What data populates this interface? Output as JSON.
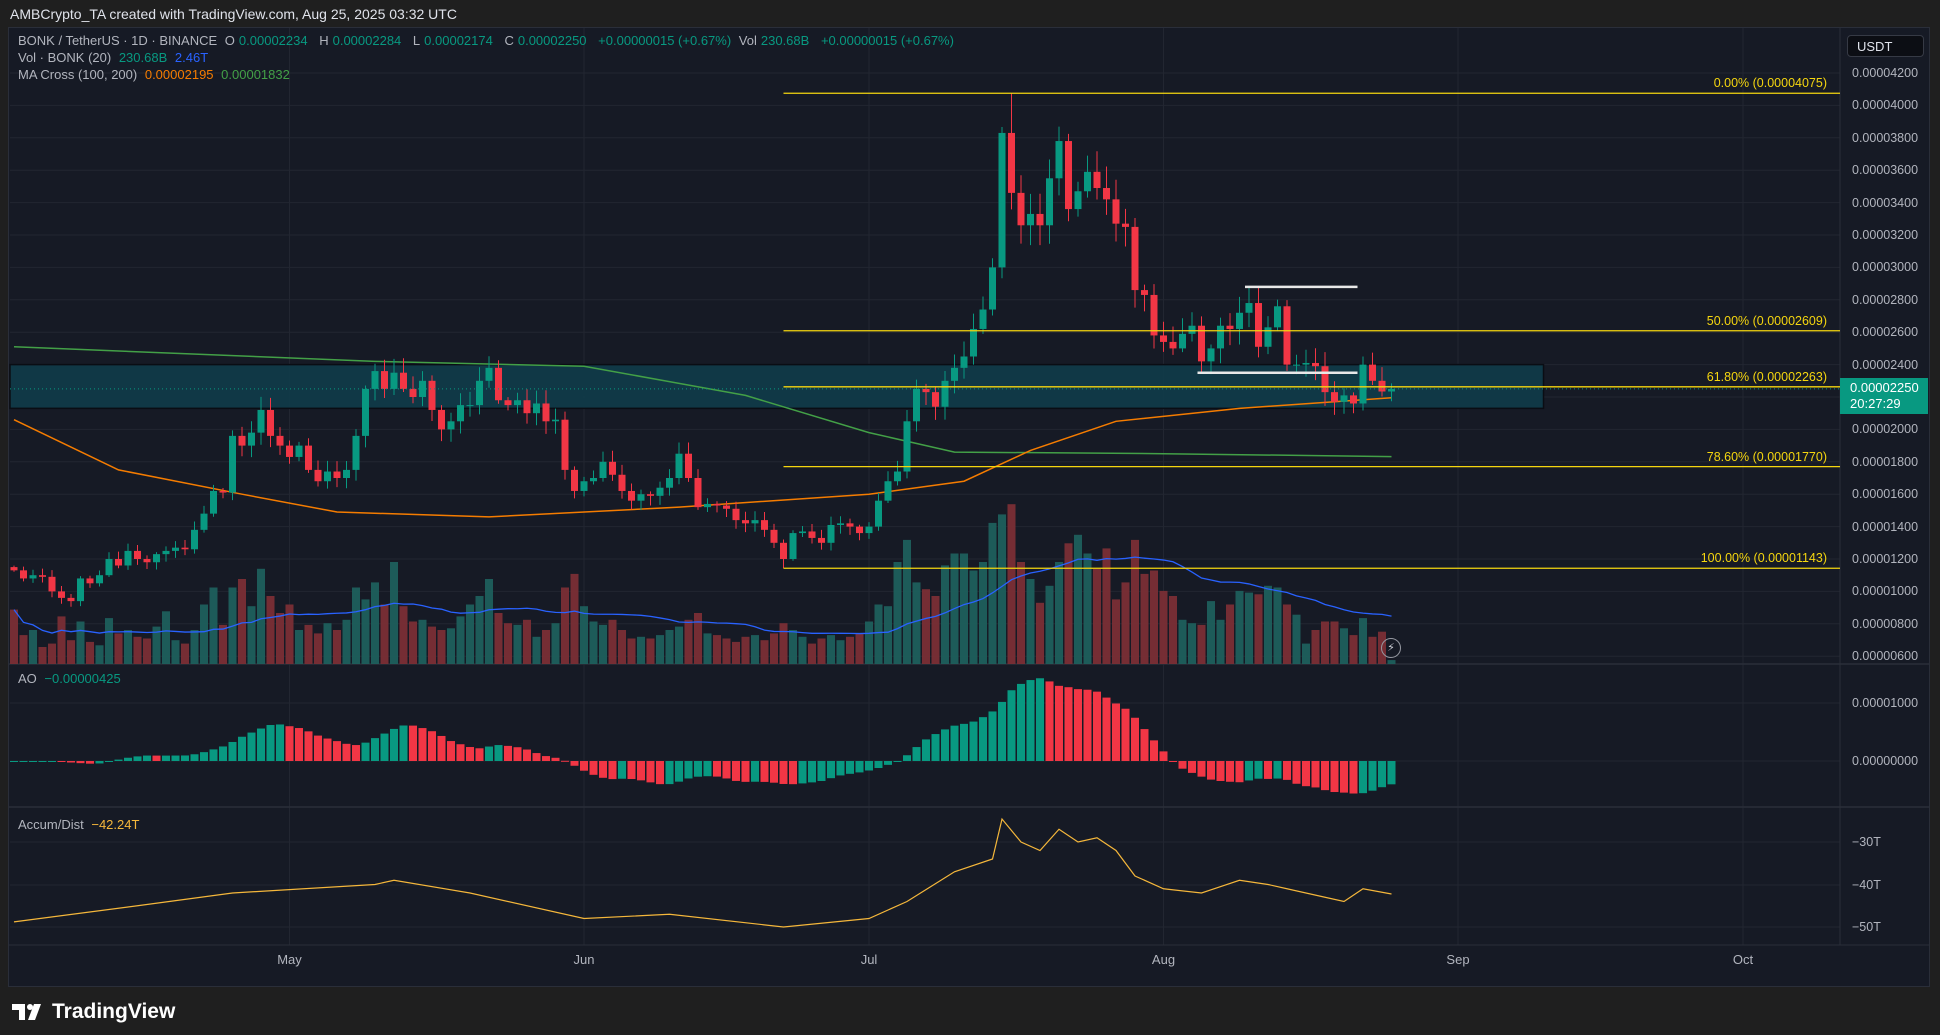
{
  "credit": "AMBCrypto_TA created with TradingView.com, Aug 25, 2025 03:32 UTC",
  "legend": {
    "symbol": "BONK / TetherUS · 1D · BINANCE",
    "o_label": "O",
    "o": "0.00002234",
    "h_label": "H",
    "h": "0.00002284",
    "l_label": "L",
    "l": "0.00002174",
    "c_label": "C",
    "c": "0.00002250",
    "change": "+0.00000015 (+0.67%)",
    "vol_label": "Vol",
    "vol": "230.68B",
    "vol_change": "+0.00000015 (+0.67%)",
    "vol_ind": "Vol · BONK (20)",
    "vol_ind_v1": "230.68B",
    "vol_ind_v2": "2.46T",
    "ma_ind": "MA Cross (100, 200)",
    "ma_v1": "0.00002195",
    "ma_v2": "0.00001832"
  },
  "currency_button": "USDT",
  "last_price": {
    "value": "0.00002250",
    "countdown": "20:27:29"
  },
  "ao": {
    "label": "AO",
    "value": "−0.00000425",
    "ticks": [
      "0.00001000",
      "0.00000000"
    ]
  },
  "ad": {
    "label": "Accum/Dist",
    "value": "−42.24T",
    "ticks": [
      "−30T",
      "−40T",
      "−50T"
    ]
  },
  "price_ticks": [
    "0.00004200",
    "0.00004000",
    "0.00003800",
    "0.00003600",
    "0.00003400",
    "0.00003200",
    "0.00003000",
    "0.00002800",
    "0.00002600",
    "0.00002400",
    "0.00002200",
    "0.00002000",
    "0.00001800",
    "0.00001600",
    "0.00001400",
    "0.00001200",
    "0.00001000",
    "0.00000800",
    "0.00000600"
  ],
  "time_ticks": [
    {
      "label": "May",
      "date": "2025-05-01"
    },
    {
      "label": "Jun",
      "date": "2025-06-01"
    },
    {
      "label": "Jul",
      "date": "2025-07-01"
    },
    {
      "label": "Aug",
      "date": "2025-08-01"
    },
    {
      "label": "Sep",
      "date": "2025-09-01"
    },
    {
      "label": "Oct",
      "date": "2025-10-01"
    }
  ],
  "fib_levels": [
    {
      "label": "0.00% (0.00004075)",
      "value": 4.075e-05
    },
    {
      "label": "50.00% (0.00002609)",
      "value": 2.609e-05
    },
    {
      "label": "61.80% (0.00002263)",
      "value": 2.263e-05
    },
    {
      "label": "78.60% (0.00001770)",
      "value": 1.77e-05
    },
    {
      "label": "100.00% (0.00001143)",
      "value": 1.143e-05
    }
  ],
  "brand": "TradingView",
  "colors": {
    "up": "#089981",
    "down": "#f23645",
    "ma100": "#f57c00",
    "ma200": "#43a047",
    "vol_ma": "#2962ff",
    "fib": "#f5d60f",
    "ad": "#f5b73b",
    "zone": "#0f3c4a"
  },
  "chart_data": {
    "type": "candlestick",
    "symbol": "BONK / TetherUS",
    "timeframe": "1D",
    "date_range": [
      "2025-04-02",
      "2025-08-25"
    ],
    "ylim": [
      6e-06,
      4.2e-05
    ],
    "grid": true,
    "close": [
      1.13e-05,
      1.08e-05,
      1.1e-05,
      1.09e-05,
      1e-05,
      9.6e-06,
      9.4e-06,
      1.08e-05,
      1.05e-05,
      1.1e-05,
      1.2e-05,
      1.16e-05,
      1.25e-05,
      1.2e-05,
      1.18e-05,
      1.23e-05,
      1.25e-05,
      1.27e-05,
      1.26e-05,
      1.38e-05,
      1.48e-05,
      1.62e-05,
      1.61e-05,
      1.96e-05,
      1.9e-05,
      1.98e-05,
      2.12e-05,
      1.96e-05,
      1.9e-05,
      1.83e-05,
      1.9e-05,
      1.75e-05,
      1.68e-05,
      1.74e-05,
      1.7e-05,
      1.75e-05,
      1.96e-05,
      2.25e-05,
      2.36e-05,
      2.25e-05,
      2.35e-05,
      2.25e-05,
      2.2e-05,
      2.3e-05,
      2.12e-05,
      2e-05,
      2.05e-05,
      2.15e-05,
      2.15e-05,
      2.3e-05,
      2.38e-05,
      2.18e-05,
      2.15e-05,
      2.18e-05,
      2.1e-05,
      2.16e-05,
      2.05e-05,
      2.06e-05,
      1.75e-05,
      1.62e-05,
      1.68e-05,
      1.7e-05,
      1.8e-05,
      1.72e-05,
      1.62e-05,
      1.56e-05,
      1.6e-05,
      1.59e-05,
      1.64e-05,
      1.7e-05,
      1.85e-05,
      1.7e-05,
      1.52e-05,
      1.54e-05,
      1.53e-05,
      1.51e-05,
      1.44e-05,
      1.42e-05,
      1.44e-05,
      1.38e-05,
      1.3e-05,
      1.2e-05,
      1.36e-05,
      1.37e-05,
      1.33e-05,
      1.3e-05,
      1.41e-05,
      1.42e-05,
      1.4e-05,
      1.36e-05,
      1.4e-05,
      1.56e-05,
      1.68e-05,
      1.74e-05,
      2.05e-05,
      2.25e-05,
      2.23e-05,
      2.14e-05,
      2.3e-05,
      2.38e-05,
      2.45e-05,
      2.62e-05,
      2.74e-05,
      3e-05,
      3.83e-05,
      3.46e-05,
      3.26e-05,
      3.33e-05,
      3.26e-05,
      3.55e-05,
      3.78e-05,
      3.36e-05,
      3.47e-05,
      3.59e-05,
      3.49e-05,
      3.42e-05,
      3.27e-05,
      3.25e-05,
      2.86e-05,
      2.83e-05,
      2.58e-05,
      2.54e-05,
      2.5e-05,
      2.59e-05,
      2.64e-05,
      2.42e-05,
      2.5e-05,
      2.64e-05,
      2.62e-05,
      2.72e-05,
      2.78e-05,
      2.51e-05,
      2.63e-05,
      2.76e-05,
      2.4e-05,
      2.4e-05,
      2.41e-05,
      2.39e-05,
      2.23e-05,
      2.17e-05,
      2.21e-05,
      2.16e-05,
      2.4e-05,
      2.3e-05,
      2.234e-05,
      2.25e-05
    ],
    "first_open": 1.15e-05,
    "known_extremes": [
      {
        "date": "2025-07-16",
        "high": 4.075e-05
      },
      {
        "date": "2025-06-22",
        "low": 1.143e-05
      },
      {
        "date": "2025-08-25",
        "open": 2.234e-05,
        "high": 2.284e-05,
        "low": 2.174e-05,
        "close": 2.25e-05
      }
    ],
    "volume_unit": "T",
    "volume": [
      3.2,
      1.7,
      2.0,
      1.0,
      1.2,
      2.8,
      1.4,
      2.5,
      1.3,
      1.1,
      2.7,
      1.8,
      2.0,
      1.6,
      1.5,
      2.2,
      3.1,
      1.4,
      1.2,
      2.0,
      3.5,
      4.5,
      2.3,
      4.5,
      5.0,
      3.4,
      5.6,
      4.0,
      3.0,
      3.5,
      2.0,
      2.3,
      1.8,
      2.4,
      2.0,
      2.6,
      4.5,
      3.8,
      4.8,
      3.5,
      6.0,
      3.4,
      2.5,
      2.6,
      2.2,
      2.0,
      2.1,
      2.8,
      3.5,
      4.0,
      5.0,
      3.0,
      2.4,
      2.3,
      2.6,
      1.6,
      2.0,
      2.4,
      4.5,
      5.3,
      3.4,
      2.5,
      2.3,
      2.6,
      2.0,
      1.5,
      1.6,
      1.5,
      1.7,
      2.0,
      2.2,
      2.6,
      3.0,
      1.8,
      1.7,
      1.5,
      1.3,
      1.6,
      1.7,
      1.4,
      1.8,
      2.4,
      2.0,
      1.6,
      1.2,
      1.5,
      1.7,
      1.4,
      1.6,
      1.8,
      2.5,
      3.5,
      3.4,
      6.0,
      7.3,
      4.8,
      4.4,
      4.0,
      5.8,
      6.5,
      6.5,
      5.5,
      6.0,
      8.3,
      8.8,
      9.4,
      6.0,
      5.0,
      3.6,
      4.6,
      6.0,
      7.1,
      7.6,
      6.5,
      5.6,
      6.8,
      3.8,
      4.8,
      7.3,
      5.3,
      5.5,
      4.3,
      4.0,
      2.6,
      2.4,
      2.3,
      3.7,
      2.6,
      3.5,
      4.3,
      4.2,
      4.1,
      4.6,
      4.5,
      3.5,
      2.9,
      1.2,
      2.0,
      2.5,
      2.5,
      2.1,
      1.7,
      2.7,
      1.6,
      1.9,
      0.23
    ],
    "ma100": [
      [
        "2025-04-02",
        2.06e-05
      ],
      [
        "2025-04-13",
        1.75e-05
      ],
      [
        "2025-04-26",
        1.6e-05
      ],
      [
        "2025-05-06",
        1.49e-05
      ],
      [
        "2025-05-22",
        1.46e-05
      ],
      [
        "2025-06-11",
        1.52e-05
      ],
      [
        "2025-07-01",
        1.6e-05
      ],
      [
        "2025-07-11",
        1.68e-05
      ],
      [
        "2025-07-18",
        1.87e-05
      ],
      [
        "2025-07-27",
        2.05e-05
      ],
      [
        "2025-08-09",
        2.13e-05
      ],
      [
        "2025-08-25",
        2.195e-05
      ]
    ],
    "ma200": [
      [
        "2025-04-02",
        2.51e-05
      ],
      [
        "2025-05-10",
        2.42e-05
      ],
      [
        "2025-06-01",
        2.39e-05
      ],
      [
        "2025-06-18",
        2.21e-05
      ],
      [
        "2025-07-01",
        1.98e-05
      ],
      [
        "2025-07-10",
        1.86e-05
      ],
      [
        "2025-08-01",
        1.85e-05
      ],
      [
        "2025-08-25",
        1.832e-05
      ]
    ],
    "supply_zone": {
      "top": 2.4e-05,
      "bottom": 2.13e-05,
      "from": "2025-04-02",
      "to": "2025-09-10"
    },
    "fib_anchor": {
      "from": "2025-06-22",
      "to": "2025-10-12"
    },
    "range_lines": [
      {
        "value": 2.88e-05,
        "from": "2025-08-10",
        "to": "2025-08-21"
      },
      {
        "value": 2.35e-05,
        "from": "2025-08-05",
        "to": "2025-08-21"
      }
    ],
    "ao_ylim": [
      -8e-06,
      1.8e-05
    ],
    "accum_dist_unit": "T",
    "accum_dist": [
      [
        "2025-04-02",
        -48.8
      ],
      [
        "2025-04-15",
        -45
      ],
      [
        "2025-04-25",
        -42
      ],
      [
        "2025-05-10",
        -40
      ],
      [
        "2025-05-12",
        -39
      ],
      [
        "2025-05-20",
        -42
      ],
      [
        "2025-06-01",
        -48
      ],
      [
        "2025-06-10",
        -47
      ],
      [
        "2025-06-22",
        -50
      ],
      [
        "2025-07-01",
        -48
      ],
      [
        "2025-07-05",
        -44
      ],
      [
        "2025-07-10",
        -37
      ],
      [
        "2025-07-14",
        -34
      ],
      [
        "2025-07-15",
        -24.6
      ],
      [
        "2025-07-17",
        -30
      ],
      [
        "2025-07-19",
        -32
      ],
      [
        "2025-07-21",
        -27
      ],
      [
        "2025-07-23",
        -30
      ],
      [
        "2025-07-25",
        -29
      ],
      [
        "2025-07-27",
        -32
      ],
      [
        "2025-07-29",
        -38
      ],
      [
        "2025-08-01",
        -41
      ],
      [
        "2025-08-05",
        -42
      ],
      [
        "2025-08-09",
        -39
      ],
      [
        "2025-08-12",
        -40
      ],
      [
        "2025-08-14",
        -41
      ],
      [
        "2025-08-18",
        -43
      ],
      [
        "2025-08-20",
        -44
      ],
      [
        "2025-08-22",
        -41
      ],
      [
        "2025-08-25",
        -42.24
      ]
    ]
  }
}
